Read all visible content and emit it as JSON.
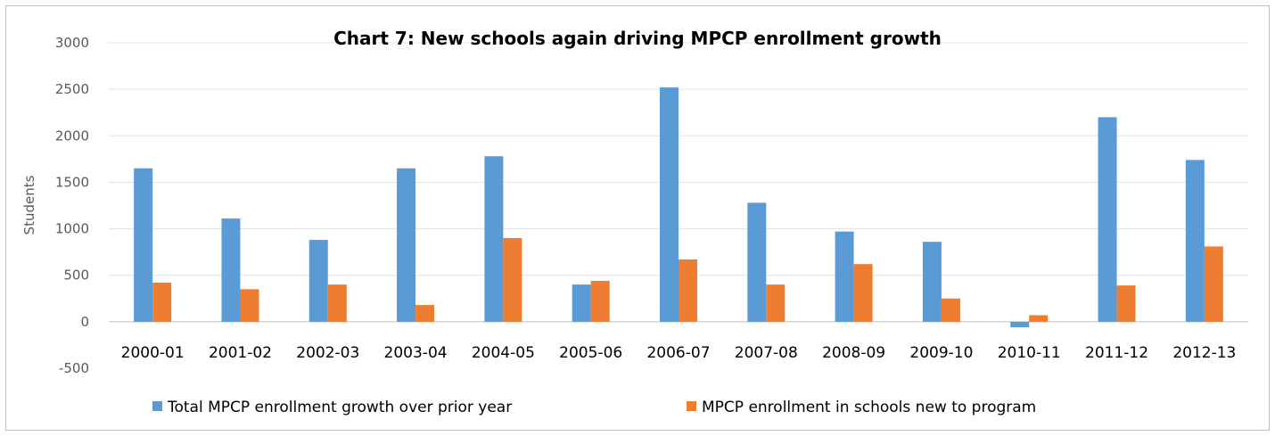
{
  "chart_data": {
    "type": "bar",
    "title": "Chart 7: New schools again driving MPCP enrollment growth",
    "xlabel": "",
    "ylabel": "Students",
    "ylim": [
      -500,
      3000
    ],
    "yticks": [
      3000,
      2500,
      2000,
      1500,
      1000,
      500,
      0,
      -500
    ],
    "grid": true,
    "legend_position": "bottom",
    "categories": [
      "2000-01",
      "2001-02",
      "2002-03",
      "2003-04",
      "2004-05",
      "2005-06",
      "2006-07",
      "2007-08",
      "2008-09",
      "2009-10",
      "2010-11",
      "2011-12",
      "2012-13"
    ],
    "series": [
      {
        "name": "Total MPCP enrollment growth over prior year",
        "color": "#5b9bd5",
        "values": [
          1650,
          1110,
          880,
          1650,
          1780,
          400,
          2520,
          1280,
          970,
          860,
          -60,
          2200,
          1740
        ]
      },
      {
        "name": "MPCP enrollment in schools new to program",
        "color": "#ed7d31",
        "values": [
          420,
          350,
          400,
          180,
          900,
          440,
          670,
          400,
          620,
          250,
          70,
          390,
          810
        ]
      }
    ]
  }
}
